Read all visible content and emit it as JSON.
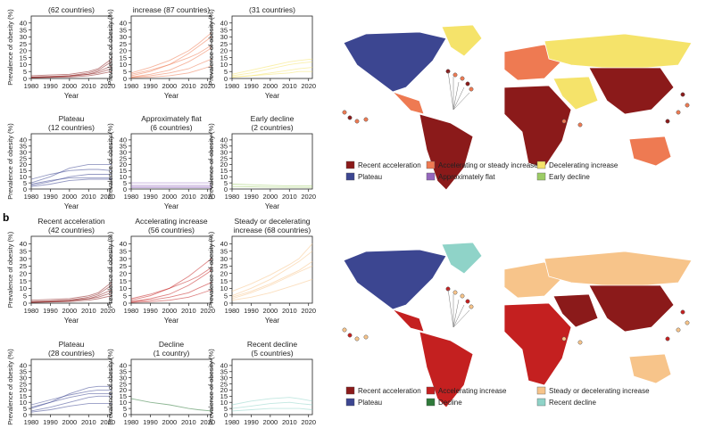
{
  "panel_labels": {
    "a": "",
    "b": "b"
  },
  "axis": {
    "xlabel": "Year",
    "ylabel": "Prevalence of obesity (%)",
    "xticks": [
      "1980",
      "1990",
      "2000",
      "2010",
      "2020"
    ],
    "yticks": [
      "0",
      "5",
      "10",
      "15",
      "20",
      "25",
      "30",
      "35",
      "40"
    ]
  },
  "colors": {
    "recent_acceleration": "#8b1a1a",
    "accelerating_steady_increase": "#ee7a52",
    "decelerating_increase_a": "#f5e36a",
    "plateau": "#3c4691",
    "approximately_flat": "#9467bd",
    "early_decline": "#9ccc65",
    "accelerating_increase_b": "#c42020",
    "steady_decelerating_b": "#f7c48a",
    "decline_b": "#2f7a3a",
    "recent_decline_b": "#8fd3c8"
  },
  "chart_data": [
    {
      "type": "line",
      "panel": "a",
      "title": "(62 countries)",
      "series_color": "#8b1a1a",
      "xlabel": "Year",
      "ylabel": "Prevalence of obesity (%)",
      "xlim": [
        1980,
        2022
      ],
      "ylim": [
        0,
        45
      ],
      "x": [
        1980,
        1990,
        2000,
        2010,
        2015,
        2022
      ],
      "series": [
        {
          "values": [
            1,
            1.5,
            2,
            4,
            6,
            12
          ]
        },
        {
          "values": [
            0.5,
            1,
            1.5,
            3,
            5,
            9
          ]
        },
        {
          "values": [
            2,
            2.5,
            3,
            5,
            7,
            14
          ]
        },
        {
          "values": [
            1,
            1.2,
            2,
            3,
            4,
            7
          ]
        },
        {
          "values": [
            0.5,
            0.8,
            1,
            2,
            3,
            5
          ]
        }
      ]
    },
    {
      "type": "line",
      "panel": "a",
      "title": "increase (87 countries)",
      "series_color": "#ee7a52",
      "xlabel": "Year",
      "ylabel": "Prevalence of obesity (%)",
      "xlim": [
        1980,
        2022
      ],
      "ylim": [
        0,
        45
      ],
      "x": [
        1980,
        1990,
        2000,
        2010,
        2015,
        2022
      ],
      "series": [
        {
          "values": [
            2,
            5,
            10,
            18,
            23,
            30
          ]
        },
        {
          "values": [
            1,
            3,
            6,
            12,
            16,
            22
          ]
        },
        {
          "values": [
            3,
            6,
            10,
            15,
            18,
            24
          ]
        },
        {
          "values": [
            1,
            2,
            4,
            7,
            10,
            14
          ]
        },
        {
          "values": [
            0.5,
            1,
            2,
            4,
            6,
            9
          ]
        },
        {
          "values": [
            4,
            8,
            13,
            20,
            25,
            33
          ]
        }
      ]
    },
    {
      "type": "line",
      "panel": "a",
      "title": "(31 countries)",
      "series_color": "#f5e36a",
      "xlabel": "Year",
      "ylabel": "Prevalence of obesity (%)",
      "xlim": [
        1980,
        2022
      ],
      "ylim": [
        0,
        45
      ],
      "x": [
        1980,
        1990,
        2000,
        2010,
        2015,
        2022
      ],
      "series": [
        {
          "values": [
            2,
            4,
            7,
            10,
            11,
            12
          ]
        },
        {
          "values": [
            1,
            2,
            4,
            6,
            7,
            8
          ]
        },
        {
          "values": [
            3,
            6,
            9,
            12,
            13,
            14
          ]
        },
        {
          "values": [
            1,
            2,
            3,
            4,
            5,
            5
          ]
        }
      ]
    },
    {
      "type": "line",
      "panel": "a",
      "title": "Plateau",
      "subtitle": "(12 countries)",
      "series_color": "#3c4691",
      "xlabel": "Year",
      "ylabel": "Prevalence of obesity (%)",
      "xlim": [
        1980,
        2022
      ],
      "ylim": [
        0,
        45
      ],
      "x": [
        1980,
        1990,
        2000,
        2010,
        2015,
        2022
      ],
      "series": [
        {
          "values": [
            5,
            10,
            17,
            20,
            20,
            20
          ]
        },
        {
          "values": [
            3,
            6,
            10,
            12,
            12,
            12
          ]
        },
        {
          "values": [
            8,
            12,
            15,
            16,
            16,
            15
          ]
        },
        {
          "values": [
            2,
            4,
            7,
            8,
            8,
            8
          ]
        },
        {
          "values": [
            4,
            7,
            9,
            9,
            9,
            9
          ]
        }
      ]
    },
    {
      "type": "line",
      "panel": "a",
      "title": "Approximately flat",
      "subtitle": "(6 countries)",
      "series_color": "#9467bd",
      "xlabel": "Year",
      "ylabel": "Prevalence of obesity (%)",
      "xlim": [
        1980,
        2022
      ],
      "ylim": [
        0,
        45
      ],
      "x": [
        1980,
        1990,
        2000,
        2010,
        2015,
        2022
      ],
      "series": [
        {
          "values": [
            3,
            3,
            3,
            3,
            3,
            3
          ]
        },
        {
          "values": [
            1,
            1,
            1,
            1,
            1,
            1
          ]
        },
        {
          "values": [
            5,
            5,
            5,
            5,
            5,
            5
          ]
        },
        {
          "values": [
            2,
            2,
            2,
            2,
            2,
            2
          ]
        }
      ]
    },
    {
      "type": "line",
      "panel": "a",
      "title": "Early decline",
      "subtitle": "(2 countries)",
      "series_color": "#9ccc65",
      "xlabel": "Year",
      "ylabel": "Prevalence of obesity (%)",
      "xlim": [
        1980,
        2022
      ],
      "ylim": [
        0,
        45
      ],
      "x": [
        1980,
        1990,
        2000,
        2010,
        2015,
        2022
      ],
      "series": [
        {
          "values": [
            4,
            3.5,
            3,
            2.5,
            2.5,
            2.5
          ]
        },
        {
          "values": [
            2,
            1.8,
            1.5,
            1.3,
            1.3,
            1.2
          ]
        }
      ]
    },
    {
      "type": "line",
      "panel": "b",
      "title": "Recent acceleration",
      "subtitle": "(42 countries)",
      "series_color": "#8b1a1a",
      "xlabel": "Year",
      "ylabel": "Prevalence of obesity (%)",
      "xlim": [
        1980,
        2022
      ],
      "ylim": [
        0,
        45
      ],
      "x": [
        1980,
        1990,
        2000,
        2010,
        2015,
        2022
      ],
      "series": [
        {
          "values": [
            1,
            1.5,
            2,
            4,
            6,
            12
          ]
        },
        {
          "values": [
            0.5,
            1,
            1.5,
            3,
            5,
            9
          ]
        },
        {
          "values": [
            2,
            2.5,
            3,
            5,
            7,
            14
          ]
        },
        {
          "values": [
            1,
            1.2,
            2,
            3,
            4,
            7
          ]
        },
        {
          "values": [
            0.5,
            0.8,
            1,
            2,
            3,
            5
          ]
        }
      ]
    },
    {
      "type": "line",
      "panel": "b",
      "title": "Accelerating increase",
      "subtitle": "(56 countries)",
      "series_color": "#c42020",
      "xlabel": "Year",
      "ylabel": "Prevalence of obesity (%)",
      "xlim": [
        1980,
        2022
      ],
      "ylim": [
        0,
        45
      ],
      "x": [
        1980,
        1990,
        2000,
        2010,
        2015,
        2022
      ],
      "series": [
        {
          "values": [
            2,
            5,
            10,
            18,
            23,
            30
          ]
        },
        {
          "values": [
            1,
            3,
            6,
            12,
            16,
            22
          ]
        },
        {
          "values": [
            3,
            6,
            10,
            15,
            18,
            24
          ]
        },
        {
          "values": [
            1,
            2,
            4,
            7,
            10,
            14
          ]
        },
        {
          "values": [
            0.5,
            1,
            2,
            4,
            6,
            9
          ]
        }
      ]
    },
    {
      "type": "line",
      "panel": "b",
      "title": "Steady or decelerating",
      "subtitle": "increase (68 countries)",
      "series_color": "#f7c48a",
      "xlabel": "Year",
      "ylabel": "Prevalence of obesity (%)",
      "xlim": [
        1980,
        2022
      ],
      "ylim": [
        0,
        45
      ],
      "x": [
        1980,
        1990,
        2000,
        2010,
        2015,
        2022
      ],
      "series": [
        {
          "values": [
            5,
            10,
            16,
            24,
            28,
            35
          ]
        },
        {
          "values": [
            3,
            7,
            12,
            18,
            21,
            25
          ]
        },
        {
          "values": [
            8,
            13,
            19,
            26,
            30,
            40
          ]
        },
        {
          "values": [
            2,
            4,
            7,
            11,
            13,
            16
          ]
        },
        {
          "values": [
            4,
            8,
            13,
            19,
            22,
            28
          ]
        }
      ]
    },
    {
      "type": "line",
      "panel": "b",
      "title": "Plateau",
      "subtitle": "(28 countries)",
      "series_color": "#3c4691",
      "xlabel": "Year",
      "ylabel": "Prevalence of obesity (%)",
      "xlim": [
        1980,
        2022
      ],
      "ylim": [
        0,
        45
      ],
      "x": [
        1980,
        1990,
        2000,
        2010,
        2015,
        2022
      ],
      "series": [
        {
          "values": [
            5,
            10,
            17,
            22,
            23,
            23
          ]
        },
        {
          "values": [
            3,
            6,
            10,
            14,
            15,
            15
          ]
        },
        {
          "values": [
            8,
            12,
            16,
            19,
            20,
            20
          ]
        },
        {
          "values": [
            2,
            4,
            7,
            9,
            9,
            9
          ]
        },
        {
          "values": [
            6,
            10,
            14,
            17,
            17,
            17
          ]
        }
      ]
    },
    {
      "type": "line",
      "panel": "b",
      "title": "Decline",
      "subtitle": "(1 country)",
      "series_color": "#2f7a3a",
      "xlabel": "Year",
      "ylabel": "Prevalence of obesity (%)",
      "xlim": [
        1980,
        2022
      ],
      "ylim": [
        0,
        45
      ],
      "x": [
        1980,
        1990,
        2000,
        2010,
        2015,
        2022
      ],
      "series": [
        {
          "values": [
            13,
            10,
            8,
            5,
            4,
            3
          ]
        }
      ]
    },
    {
      "type": "line",
      "panel": "b",
      "title": "Recent decline",
      "subtitle": "(5 countries)",
      "series_color": "#8fd3c8",
      "xlabel": "Year",
      "ylabel": "Prevalence of obesity (%)",
      "xlim": [
        1980,
        2022
      ],
      "ylim": [
        0,
        45
      ],
      "x": [
        1980,
        1990,
        2000,
        2010,
        2015,
        2022
      ],
      "series": [
        {
          "values": [
            8,
            11,
            13,
            14,
            13,
            11
          ]
        },
        {
          "values": [
            5,
            7,
            9,
            10,
            9,
            8
          ]
        },
        {
          "values": [
            3,
            4,
            5,
            5,
            5,
            4
          ]
        }
      ]
    }
  ],
  "legend_a": [
    {
      "label": "Recent acceleration",
      "color": "#8b1a1a"
    },
    {
      "label": "Accelerating or steady increase",
      "color": "#ee7a52"
    },
    {
      "label": "Decelerating increase",
      "color": "#f5e36a"
    },
    {
      "label": "Plateau",
      "color": "#3c4691"
    },
    {
      "label": "Approximately flat",
      "color": "#9467bd"
    },
    {
      "label": "Early decline",
      "color": "#9ccc65"
    }
  ],
  "legend_b": [
    {
      "label": "Recent acceleration",
      "color": "#8b1a1a"
    },
    {
      "label": "Accelerating increase",
      "color": "#c42020"
    },
    {
      "label": "Steady or decelerating increase",
      "color": "#f7c48a"
    },
    {
      "label": "Plateau",
      "color": "#3c4691"
    },
    {
      "label": "Decline",
      "color": "#2f7a3a"
    },
    {
      "label": "Recent decline",
      "color": "#8fd3c8"
    }
  ]
}
